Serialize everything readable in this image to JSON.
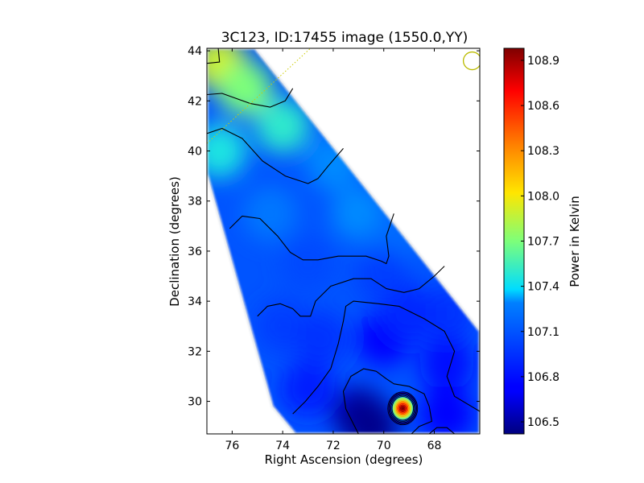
{
  "chart_data": {
    "type": "heatmap",
    "title": "3C123, ID:17455 image (1550.0,YY)",
    "xlabel": "Right Ascension (degrees)",
    "ylabel": "Declination (degrees)",
    "xlim": [
      77.0,
      66.2
    ],
    "ylim": [
      28.7,
      44.1
    ],
    "x_ticks": [
      76,
      74,
      72,
      70,
      68
    ],
    "x_tick_labels": [
      "76",
      "74",
      "72",
      "70",
      "68"
    ],
    "y_ticks": [
      30,
      32,
      34,
      36,
      38,
      40,
      42,
      44
    ],
    "y_tick_labels": [
      "30",
      "32",
      "34",
      "36",
      "38",
      "40",
      "42",
      "44"
    ],
    "colorbar": {
      "label": "Power in Kelvin",
      "min": 106.42,
      "max": 108.98,
      "ticks": [
        106.5,
        106.8,
        107.1,
        107.4,
        107.7,
        108.0,
        108.3,
        108.6,
        108.9
      ],
      "tick_labels": [
        "106.5",
        "106.8",
        "107.1",
        "107.4",
        "107.7",
        "108.0",
        "108.3",
        "108.6",
        "108.9"
      ],
      "colormap": "jet"
    },
    "coverage_polygon": [
      [
        77.0,
        39.1
      ],
      [
        77.0,
        44.1
      ],
      [
        75.1,
        44.1
      ],
      [
        66.2,
        32.8
      ],
      [
        66.2,
        28.7
      ],
      [
        73.5,
        28.7
      ],
      [
        74.4,
        29.8
      ]
    ],
    "field_samples": [
      {
        "x": 76.5,
        "y": 43.5,
        "v": 107.9
      },
      {
        "x": 75.5,
        "y": 42.5,
        "v": 107.7
      },
      {
        "x": 74.0,
        "y": 41.0,
        "v": 107.5
      },
      {
        "x": 76.5,
        "y": 40.0,
        "v": 107.45
      },
      {
        "x": 72.0,
        "y": 39.5,
        "v": 107.3
      },
      {
        "x": 74.5,
        "y": 37.5,
        "v": 107.25
      },
      {
        "x": 71.0,
        "y": 37.5,
        "v": 107.3
      },
      {
        "x": 69.5,
        "y": 36.5,
        "v": 107.2
      },
      {
        "x": 73.0,
        "y": 35.5,
        "v": 107.05
      },
      {
        "x": 70.0,
        "y": 35.0,
        "v": 107.0
      },
      {
        "x": 74.0,
        "y": 33.0,
        "v": 107.0
      },
      {
        "x": 67.5,
        "y": 33.5,
        "v": 106.95
      },
      {
        "x": 72.5,
        "y": 32.5,
        "v": 106.95
      },
      {
        "x": 70.0,
        "y": 32.5,
        "v": 106.75
      },
      {
        "x": 67.5,
        "y": 31.5,
        "v": 106.8
      },
      {
        "x": 73.0,
        "y": 30.5,
        "v": 106.85
      },
      {
        "x": 71.0,
        "y": 29.5,
        "v": 106.5
      },
      {
        "x": 70.5,
        "y": 29.0,
        "v": 106.45
      },
      {
        "x": 67.5,
        "y": 29.5,
        "v": 106.7
      },
      {
        "x": 69.0,
        "y": 33.5,
        "v": 106.9
      }
    ],
    "bright_source": {
      "x": 69.25,
      "y": 29.72,
      "peak": 108.98
    },
    "contours": [
      [
        [
          77.0,
          43.5
        ],
        [
          76.5,
          43.55
        ],
        [
          76.55,
          44.1
        ]
      ],
      [
        [
          77.0,
          42.25
        ],
        [
          76.4,
          42.3
        ],
        [
          75.3,
          41.9
        ],
        [
          74.5,
          41.75
        ],
        [
          73.9,
          42.0
        ],
        [
          73.6,
          42.5
        ]
      ],
      [
        [
          77.0,
          40.7
        ],
        [
          76.4,
          40.9
        ],
        [
          75.6,
          40.5
        ],
        [
          74.8,
          39.6
        ],
        [
          73.9,
          39.0
        ],
        [
          73.0,
          38.7
        ],
        [
          72.6,
          38.9
        ],
        [
          72.2,
          39.4
        ],
        [
          71.6,
          40.1
        ]
      ],
      [
        [
          76.1,
          36.9
        ],
        [
          75.6,
          37.4
        ],
        [
          74.9,
          37.3
        ],
        [
          74.2,
          36.6
        ],
        [
          73.7,
          35.95
        ],
        [
          73.2,
          35.65
        ],
        [
          72.6,
          35.65
        ],
        [
          71.8,
          35.8
        ],
        [
          70.7,
          35.8
        ],
        [
          70.1,
          35.6
        ],
        [
          69.9,
          35.5
        ],
        [
          69.8,
          35.8
        ],
        [
          69.9,
          36.6
        ],
        [
          69.6,
          37.5
        ]
      ],
      [
        [
          75.0,
          33.4
        ],
        [
          74.6,
          33.8
        ],
        [
          74.1,
          33.9
        ],
        [
          73.6,
          33.7
        ],
        [
          73.3,
          33.4
        ],
        [
          72.9,
          33.4
        ],
        [
          72.7,
          34.0
        ],
        [
          72.1,
          34.6
        ],
        [
          71.2,
          34.9
        ],
        [
          70.5,
          34.9
        ],
        [
          69.9,
          34.5
        ],
        [
          69.2,
          34.35
        ],
        [
          68.6,
          34.5
        ],
        [
          68.0,
          35.0
        ],
        [
          67.6,
          35.4
        ]
      ],
      [
        [
          73.6,
          29.5
        ],
        [
          73.1,
          30.0
        ],
        [
          72.6,
          30.6
        ],
        [
          72.1,
          31.3
        ],
        [
          71.8,
          32.3
        ],
        [
          71.6,
          33.2
        ],
        [
          71.5,
          33.8
        ],
        [
          71.2,
          34.0
        ],
        [
          70.2,
          33.9
        ],
        [
          69.4,
          33.8
        ],
        [
          68.4,
          33.3
        ],
        [
          67.6,
          32.8
        ],
        [
          67.2,
          32.0
        ],
        [
          67.5,
          31.0
        ],
        [
          67.2,
          30.2
        ],
        [
          66.2,
          29.6
        ]
      ],
      [
        [
          71.0,
          28.7
        ],
        [
          71.5,
          29.7
        ],
        [
          71.6,
          30.4
        ],
        [
          71.3,
          31.0
        ],
        [
          70.8,
          31.3
        ],
        [
          70.3,
          31.2
        ],
        [
          69.9,
          30.9
        ],
        [
          69.6,
          30.7
        ],
        [
          69.0,
          30.6
        ],
        [
          68.4,
          30.3
        ],
        [
          68.2,
          29.8
        ],
        [
          68.1,
          29.2
        ],
        [
          68.6,
          29.0
        ],
        [
          68.9,
          28.7
        ]
      ],
      [
        [
          68.2,
          28.7
        ],
        [
          67.9,
          28.95
        ],
        [
          67.5,
          28.95
        ],
        [
          67.2,
          28.7
        ]
      ]
    ],
    "source_contour_levels": 14,
    "dotted_line": [
      [
        77.0,
        40.3
      ],
      [
        72.9,
        44.1
      ]
    ],
    "beam_marker": {
      "x": 66.5,
      "y": 43.6
    }
  },
  "colors": {
    "contour": "#000000",
    "dotted_line": "#cccc00",
    "beam_marker": "#bbbb00"
  }
}
